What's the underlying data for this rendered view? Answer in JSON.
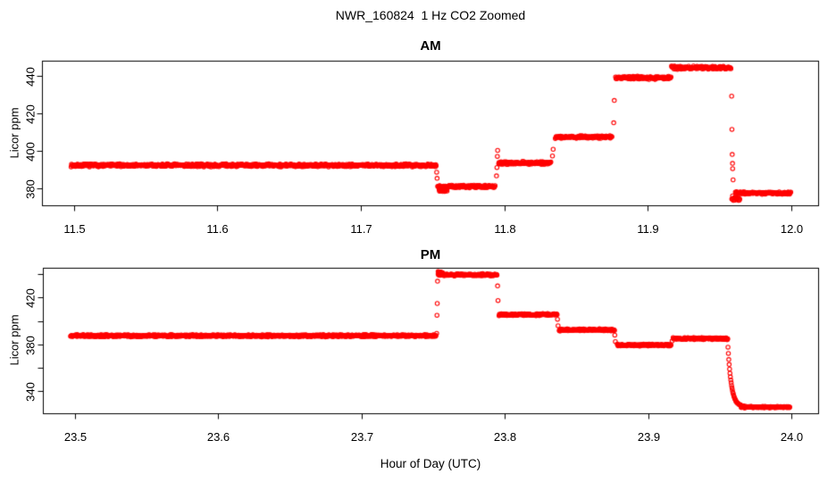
{
  "page": {
    "title": "NWR_160824  1 Hz CO2 Zoomed",
    "xlabel": "Hour of Day (UTC)",
    "ylabel": "Licor ppm",
    "point_color": "#ff0000",
    "axis_color": "#000000"
  },
  "chart_data": [
    {
      "type": "scatter",
      "title": "AM",
      "ylabel": "Licor ppm",
      "xlabel": "",
      "marker": "open-circle",
      "color": "#ff0000",
      "xlim": [
        11.478,
        12.019
      ],
      "ylim": [
        370.5,
        448.1
      ],
      "grid": false,
      "legend": "none",
      "xticks": [
        {
          "v": 11.5,
          "label": "11.5"
        },
        {
          "v": 11.6,
          "label": "11.6"
        },
        {
          "v": 11.7,
          "label": "11.7"
        },
        {
          "v": 11.8,
          "label": "11.8"
        },
        {
          "v": 11.9,
          "label": "11.9"
        },
        {
          "v": 12.0,
          "label": "12.0"
        }
      ],
      "yticks": [
        {
          "v": 380,
          "label": "380"
        },
        {
          "v": 400,
          "label": "400"
        },
        {
          "v": 420,
          "label": "420"
        },
        {
          "v": 440,
          "label": "440"
        }
      ],
      "segments": [
        {
          "x0": 11.498,
          "x1": 11.7525,
          "y": 392.2,
          "noise": 0.9
        },
        {
          "x0": 11.7535,
          "x1": 11.7935,
          "y": 380.8,
          "noise": 0.9
        },
        {
          "x0": 11.7545,
          "x1": 11.76,
          "y": 378.6,
          "noise": 0.7
        },
        {
          "x0": 11.796,
          "x1": 11.8325,
          "y": 393.5,
          "noise": 0.9
        },
        {
          "x0": 11.8355,
          "x1": 11.875,
          "y": 407.4,
          "noise": 0.9
        },
        {
          "x0": 11.8775,
          "x1": 11.916,
          "y": 439.2,
          "noise": 0.9
        },
        {
          "x0": 11.9165,
          "x1": 11.958,
          "y": 444.6,
          "noise": 1.0
        },
        {
          "x0": 11.9585,
          "x1": 11.964,
          "y": 374.5,
          "noise": 1.6
        },
        {
          "x0": 11.961,
          "x1": 11.9995,
          "y": 377.3,
          "noise": 0.8
        }
      ],
      "points": [
        [
          11.7528,
          388.5
        ],
        [
          11.7531,
          385.2
        ],
        [
          11.7945,
          386.5
        ],
        [
          11.7948,
          391.0
        ],
        [
          11.7951,
          397.0
        ],
        [
          11.7953,
          400.2
        ],
        [
          11.8335,
          397.2
        ],
        [
          11.834,
          400.8
        ],
        [
          11.8762,
          415.0
        ],
        [
          11.8766,
          427.0
        ],
        [
          11.9584,
          429.3
        ],
        [
          11.9586,
          411.5
        ],
        [
          11.9588,
          398.0
        ],
        [
          11.959,
          393.2
        ],
        [
          11.9591,
          390.4
        ],
        [
          11.9594,
          384.4
        ]
      ]
    },
    {
      "type": "scatter",
      "title": "PM",
      "ylabel": "Licor ppm",
      "xlabel": "Hour of Day (UTC)",
      "marker": "open-circle",
      "color": "#ff0000",
      "xlim": [
        23.478,
        24.019
      ],
      "ylim": [
        320.9,
        445.1
      ],
      "grid": false,
      "legend": "none",
      "xticks": [
        {
          "v": 23.5,
          "label": "23.5"
        },
        {
          "v": 23.6,
          "label": "23.6"
        },
        {
          "v": 23.7,
          "label": "23.7"
        },
        {
          "v": 23.8,
          "label": "23.8"
        },
        {
          "v": 23.9,
          "label": "23.9"
        },
        {
          "v": 24.0,
          "label": "24.0"
        }
      ],
      "yticks": [
        {
          "v": 340,
          "label": "340"
        },
        {
          "v": 360,
          "label": ""
        },
        {
          "v": 380,
          "label": "380"
        },
        {
          "v": 400,
          "label": ""
        },
        {
          "v": 420,
          "label": "420"
        },
        {
          "v": 440,
          "label": ""
        }
      ],
      "segments": [
        {
          "x0": 23.497,
          "x1": 23.752,
          "y": 387.5,
          "noise": 1.1
        },
        {
          "x0": 23.7535,
          "x1": 23.7945,
          "y": 439.5,
          "noise": 1.1
        },
        {
          "x0": 23.7535,
          "x1": 23.7565,
          "y": 441.5,
          "noise": 1.0
        },
        {
          "x0": 23.796,
          "x1": 23.8365,
          "y": 405.5,
          "noise": 1.0
        },
        {
          "x0": 23.838,
          "x1": 23.8765,
          "y": 392.5,
          "noise": 1.0
        },
        {
          "x0": 23.8785,
          "x1": 23.916,
          "y": 379.5,
          "noise": 1.0
        },
        {
          "x0": 23.9175,
          "x1": 23.9555,
          "y": 385.0,
          "noise": 1.0
        },
        {
          "type": "decay",
          "x0": 23.9555,
          "x1": 23.967,
          "from": 384.0,
          "to": 326.8,
          "tau": 0.0024,
          "noise": 0.5
        },
        {
          "x0": 23.965,
          "x1": 23.999,
          "y": 326.5,
          "noise": 0.8
        }
      ],
      "points": [
        [
          23.7525,
          389.5
        ],
        [
          23.7527,
          405.0
        ],
        [
          23.7529,
          415.0
        ],
        [
          23.7531,
          434.0
        ],
        [
          23.795,
          430.0
        ],
        [
          23.7953,
          417.5
        ],
        [
          23.8368,
          401.5
        ],
        [
          23.8372,
          396.0
        ],
        [
          23.8768,
          388.0
        ],
        [
          23.8772,
          382.5
        ],
        [
          23.9168,
          383.0
        ]
      ]
    }
  ]
}
